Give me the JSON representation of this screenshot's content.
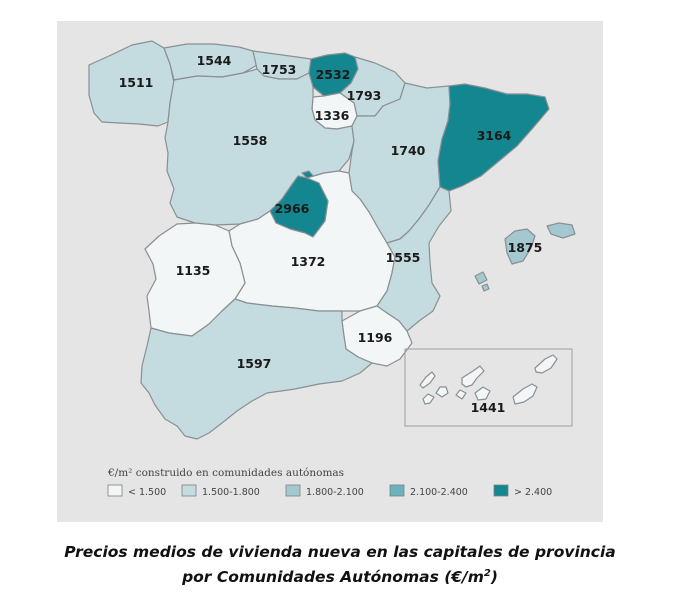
{
  "legend": {
    "title": "€/m² construido en comunidades autónomas",
    "classes": [
      {
        "label": "< 1.500",
        "color": "#f2f6f7"
      },
      {
        "label": "1.500-1.800",
        "color": "#c4dbe0"
      },
      {
        "label": "1.800-2.100",
        "color": "#a3c8cf"
      },
      {
        "label": "2.100-2.400",
        "color": "#6bb2bc"
      },
      {
        "label": "> 2.400",
        "color": "#13868f"
      }
    ]
  },
  "regions": [
    {
      "id": "galicia",
      "value": "1511",
      "color": "#c4dbe0"
    },
    {
      "id": "asturias",
      "value": "1544",
      "color": "#c4dbe0"
    },
    {
      "id": "cantabria",
      "value": "1753",
      "color": "#c4dbe0"
    },
    {
      "id": "pais-vasco",
      "value": "2532",
      "color": "#13868f"
    },
    {
      "id": "navarra",
      "value": "1793",
      "color": "#c4dbe0"
    },
    {
      "id": "la-rioja",
      "value": "1336",
      "color": "#f2f6f7"
    },
    {
      "id": "castilla-y-leon",
      "value": "1558",
      "color": "#c4dbe0"
    },
    {
      "id": "aragon",
      "value": "1740",
      "color": "#c4dbe0"
    },
    {
      "id": "cataluna",
      "value": "3164",
      "color": "#13868f"
    },
    {
      "id": "madrid",
      "value": "2966",
      "color": "#13868f"
    },
    {
      "id": "extremadura",
      "value": "1135",
      "color": "#f2f6f7"
    },
    {
      "id": "castilla-la-mancha",
      "value": "1372",
      "color": "#f2f6f7"
    },
    {
      "id": "comunidad-valenciana",
      "value": "1555",
      "color": "#c4dbe0"
    },
    {
      "id": "baleares",
      "value": "1875",
      "color": "#a3c8cf"
    },
    {
      "id": "murcia",
      "value": "1196",
      "color": "#f2f6f7"
    },
    {
      "id": "andalucia",
      "value": "1597",
      "color": "#c4dbe0"
    },
    {
      "id": "canarias",
      "value": "1441",
      "color": "#f2f6f7"
    }
  ],
  "caption": {
    "line1": "Precios medios de vivienda nueva en las capitales de provincia",
    "line2": "por Comunidades Autónomas (€/m",
    "line2_sup": "2",
    "line2_end": ")"
  }
}
